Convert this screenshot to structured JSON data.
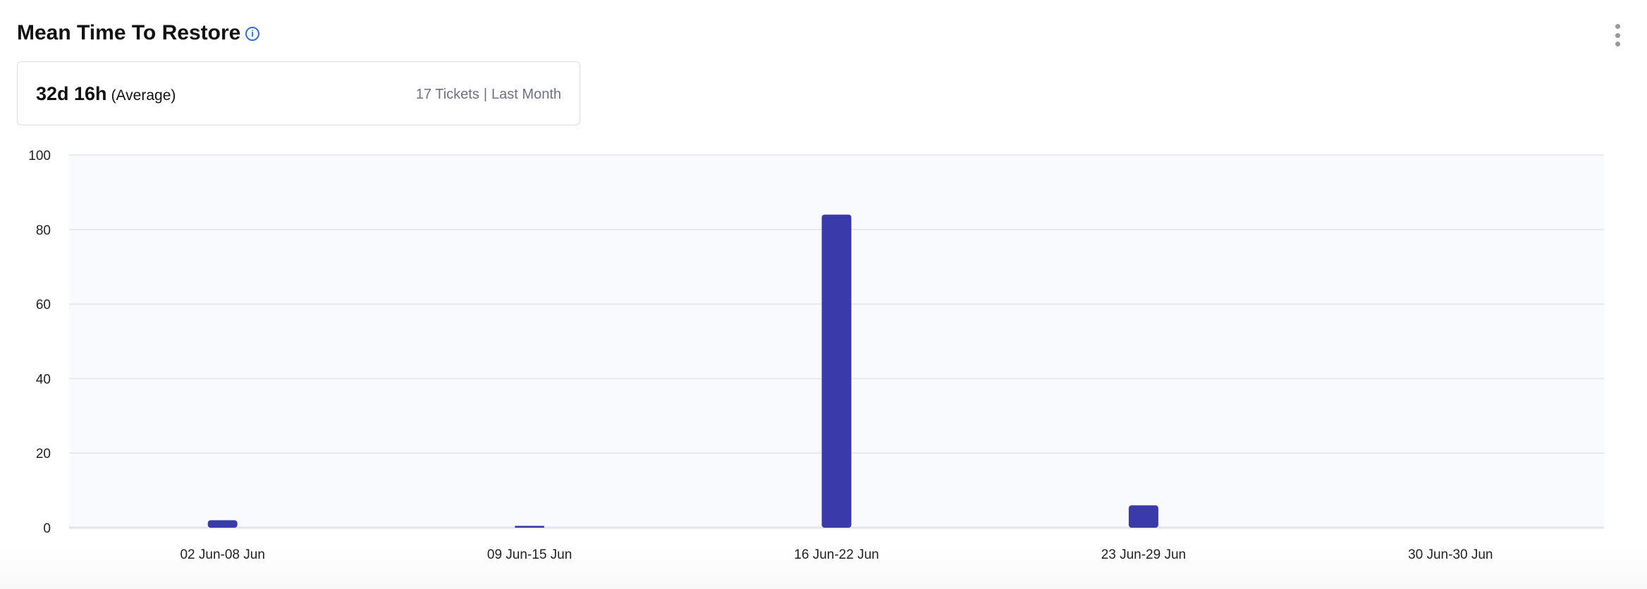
{
  "header": {
    "title": "Mean Time To Restore",
    "info_icon": "info-icon",
    "menu_icon": "kebab-menu-icon"
  },
  "summary": {
    "value": "32d 16h",
    "label": "(Average)",
    "tickets": "17 Tickets",
    "separator": "|",
    "period": "Last Month"
  },
  "chart_data": {
    "type": "bar",
    "categories": [
      "02 Jun-08 Jun",
      "09 Jun-15 Jun",
      "16 Jun-22 Jun",
      "23 Jun-29 Jun",
      "30 Jun-30 Jun"
    ],
    "values": [
      2,
      0.5,
      84,
      6,
      0
    ],
    "ylim": [
      0,
      100
    ],
    "yticks": [
      0,
      20,
      40,
      60,
      80,
      100
    ],
    "grid": true,
    "bar_color": "#3b3aab",
    "plot_background": "#f9fafe"
  }
}
